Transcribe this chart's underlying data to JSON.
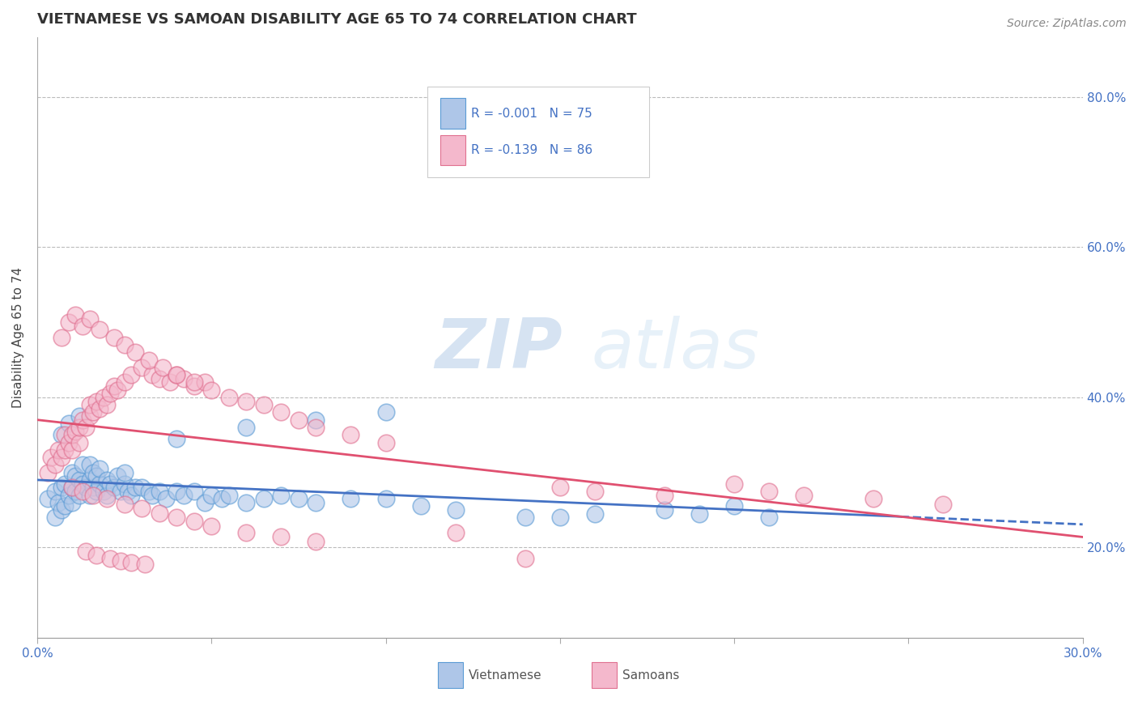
{
  "title": "VIETNAMESE VS SAMOAN DISABILITY AGE 65 TO 74 CORRELATION CHART",
  "source_text": "Source: ZipAtlas.com",
  "ylabel": "Disability Age 65 to 74",
  "xlim": [
    0.0,
    0.3
  ],
  "ylim": [
    0.08,
    0.88
  ],
  "xticks": [
    0.0,
    0.05,
    0.1,
    0.15,
    0.2,
    0.25,
    0.3
  ],
  "ytick_labels_right": [
    "20.0%",
    "40.0%",
    "60.0%",
    "80.0%"
  ],
  "yticks_right": [
    0.2,
    0.4,
    0.6,
    0.8
  ],
  "viet_color": "#aec6e8",
  "viet_edge_color": "#5b9bd5",
  "samoa_color": "#f4b8cc",
  "samoa_edge_color": "#e07090",
  "trend_viet_color": "#4472c4",
  "trend_samoa_color": "#e05070",
  "R_viet": -0.001,
  "N_viet": 75,
  "R_samoa": -0.139,
  "N_samoa": 86,
  "viet_x": [
    0.003,
    0.005,
    0.005,
    0.006,
    0.007,
    0.007,
    0.008,
    0.008,
    0.009,
    0.01,
    0.01,
    0.01,
    0.011,
    0.011,
    0.012,
    0.012,
    0.013,
    0.013,
    0.014,
    0.015,
    0.015,
    0.015,
    0.016,
    0.016,
    0.017,
    0.017,
    0.018,
    0.018,
    0.019,
    0.02,
    0.02,
    0.021,
    0.022,
    0.023,
    0.024,
    0.025,
    0.025,
    0.026,
    0.027,
    0.028,
    0.03,
    0.032,
    0.033,
    0.035,
    0.037,
    0.04,
    0.042,
    0.045,
    0.048,
    0.05,
    0.053,
    0.055,
    0.06,
    0.065,
    0.07,
    0.075,
    0.08,
    0.09,
    0.1,
    0.11,
    0.12,
    0.14,
    0.15,
    0.16,
    0.18,
    0.19,
    0.2,
    0.21,
    0.04,
    0.06,
    0.08,
    0.1,
    0.007,
    0.009,
    0.012
  ],
  "viet_y": [
    0.265,
    0.24,
    0.275,
    0.26,
    0.25,
    0.28,
    0.255,
    0.285,
    0.27,
    0.26,
    0.28,
    0.3,
    0.275,
    0.295,
    0.27,
    0.29,
    0.285,
    0.31,
    0.28,
    0.27,
    0.29,
    0.31,
    0.28,
    0.3,
    0.275,
    0.295,
    0.285,
    0.305,
    0.275,
    0.27,
    0.29,
    0.285,
    0.28,
    0.295,
    0.275,
    0.285,
    0.3,
    0.275,
    0.27,
    0.28,
    0.28,
    0.275,
    0.27,
    0.275,
    0.265,
    0.275,
    0.27,
    0.275,
    0.26,
    0.27,
    0.265,
    0.27,
    0.26,
    0.265,
    0.27,
    0.265,
    0.26,
    0.265,
    0.265,
    0.255,
    0.25,
    0.24,
    0.24,
    0.245,
    0.25,
    0.245,
    0.255,
    0.24,
    0.345,
    0.36,
    0.37,
    0.38,
    0.35,
    0.365,
    0.375
  ],
  "samoa_x": [
    0.003,
    0.004,
    0.005,
    0.006,
    0.007,
    0.008,
    0.008,
    0.009,
    0.01,
    0.01,
    0.011,
    0.012,
    0.012,
    0.013,
    0.014,
    0.015,
    0.015,
    0.016,
    0.017,
    0.018,
    0.019,
    0.02,
    0.021,
    0.022,
    0.023,
    0.025,
    0.027,
    0.03,
    0.033,
    0.035,
    0.038,
    0.04,
    0.042,
    0.045,
    0.048,
    0.05,
    0.055,
    0.06,
    0.065,
    0.07,
    0.075,
    0.08,
    0.09,
    0.1,
    0.007,
    0.009,
    0.011,
    0.013,
    0.015,
    0.018,
    0.022,
    0.025,
    0.028,
    0.032,
    0.036,
    0.04,
    0.045,
    0.01,
    0.013,
    0.016,
    0.02,
    0.025,
    0.03,
    0.035,
    0.04,
    0.045,
    0.05,
    0.06,
    0.07,
    0.08,
    0.15,
    0.16,
    0.18,
    0.2,
    0.21,
    0.22,
    0.24,
    0.26,
    0.12,
    0.14,
    0.014,
    0.017,
    0.021,
    0.024,
    0.027,
    0.031
  ],
  "samoa_y": [
    0.3,
    0.32,
    0.31,
    0.33,
    0.32,
    0.33,
    0.35,
    0.34,
    0.33,
    0.35,
    0.355,
    0.34,
    0.36,
    0.37,
    0.36,
    0.375,
    0.39,
    0.38,
    0.395,
    0.385,
    0.4,
    0.39,
    0.405,
    0.415,
    0.41,
    0.42,
    0.43,
    0.44,
    0.43,
    0.425,
    0.42,
    0.43,
    0.425,
    0.415,
    0.42,
    0.41,
    0.4,
    0.395,
    0.39,
    0.38,
    0.37,
    0.36,
    0.35,
    0.34,
    0.48,
    0.5,
    0.51,
    0.495,
    0.505,
    0.49,
    0.48,
    0.47,
    0.46,
    0.45,
    0.44,
    0.43,
    0.42,
    0.28,
    0.275,
    0.27,
    0.265,
    0.258,
    0.252,
    0.246,
    0.24,
    0.235,
    0.228,
    0.22,
    0.214,
    0.208,
    0.28,
    0.275,
    0.27,
    0.285,
    0.275,
    0.27,
    0.265,
    0.258,
    0.22,
    0.185,
    0.195,
    0.19,
    0.185,
    0.182,
    0.18,
    0.178
  ],
  "watermark_text": "ZIPatlas",
  "background_color": "#ffffff",
  "grid_color": "#bbbbbb",
  "title_fontsize": 13,
  "axis_label_fontsize": 11,
  "tick_fontsize": 11,
  "legend_fontsize": 11,
  "source_fontsize": 10
}
